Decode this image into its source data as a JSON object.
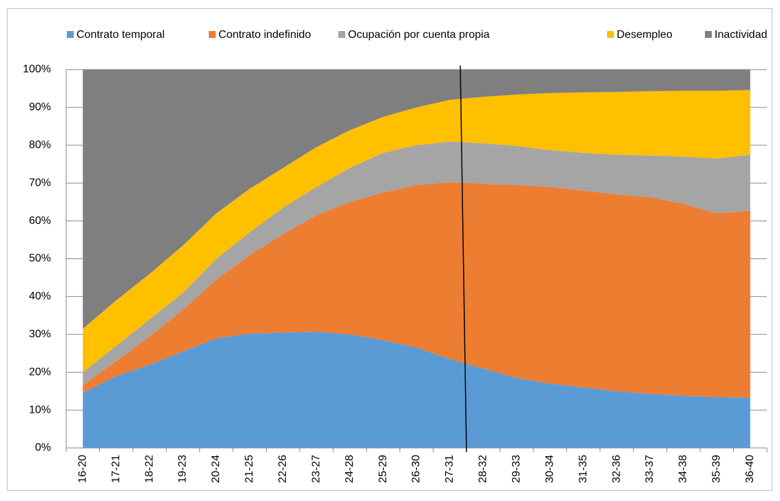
{
  "chart_data": {
    "type": "stacked_area",
    "categories": [
      "16-20",
      "17-21",
      "18-22",
      "19-23",
      "20-24",
      "21-25",
      "22-26",
      "23-27",
      "24-28",
      "25-29",
      "26-30",
      "27-31",
      "28-32",
      "29-33",
      "30-34",
      "31-35",
      "32-36",
      "33-37",
      "34-38",
      "35-39",
      "36-40"
    ],
    "series": [
      {
        "name": "Contrato temporal",
        "color": "#5b9bd5",
        "values": [
          14.5,
          19,
          22,
          25.5,
          29,
          30.2,
          30.5,
          30.7,
          30,
          28.5,
          26.5,
          23.5,
          21,
          18.5,
          17,
          16,
          15,
          14.3,
          13.8,
          13.4,
          13.3
        ]
      },
      {
        "name": "Contrato indefinido",
        "color": "#ed7d31",
        "values": [
          2,
          4,
          7.5,
          11,
          15.5,
          20.8,
          26,
          30.8,
          35,
          39,
          43,
          46.7,
          48.8,
          51,
          52,
          52,
          52,
          52,
          50.7,
          48.6,
          49.4
        ]
      },
      {
        "name": "Ocupación por cuenta propia",
        "color": "#a5a5a5",
        "values": [
          3.5,
          4,
          4.5,
          4.5,
          5.5,
          6,
          7,
          7.5,
          9,
          10.5,
          10.5,
          10.8,
          10.7,
          10.3,
          9.7,
          10,
          10.5,
          11,
          12.5,
          14.5,
          14.8
        ]
      },
      {
        "name": "Desempleo",
        "color": "#ffc000",
        "values": [
          11.5,
          12,
          12,
          12.5,
          12,
          11.5,
          10.5,
          10.5,
          10,
          9.5,
          10,
          11,
          12.3,
          13.6,
          15.1,
          16,
          16.6,
          17,
          17.4,
          17.9,
          17.1
        ]
      },
      {
        "name": "Inactividad",
        "color": "#7f7f7f",
        "values": [
          68.5,
          61,
          54,
          46.5,
          38,
          31.5,
          26,
          20.5,
          16,
          12.5,
          10,
          8,
          7.2,
          6.6,
          6.2,
          6,
          5.9,
          5.7,
          5.6,
          5.6,
          5.4
        ]
      }
    ],
    "ylim": [
      0,
      100
    ],
    "yticks": [
      {
        "value": 0,
        "label": "0%"
      },
      {
        "value": 10,
        "label": "10%"
      },
      {
        "value": 20,
        "label": "20%"
      },
      {
        "value": 30,
        "label": "30%"
      },
      {
        "value": 40,
        "label": "40%"
      },
      {
        "value": 50,
        "label": "50%"
      },
      {
        "value": 60,
        "label": "60%"
      },
      {
        "value": 70,
        "label": "70%"
      },
      {
        "value": 80,
        "label": "80%"
      },
      {
        "value": 90,
        "label": "90%"
      },
      {
        "value": 100,
        "label": "100%"
      }
    ],
    "grid": true,
    "legend": "top"
  }
}
